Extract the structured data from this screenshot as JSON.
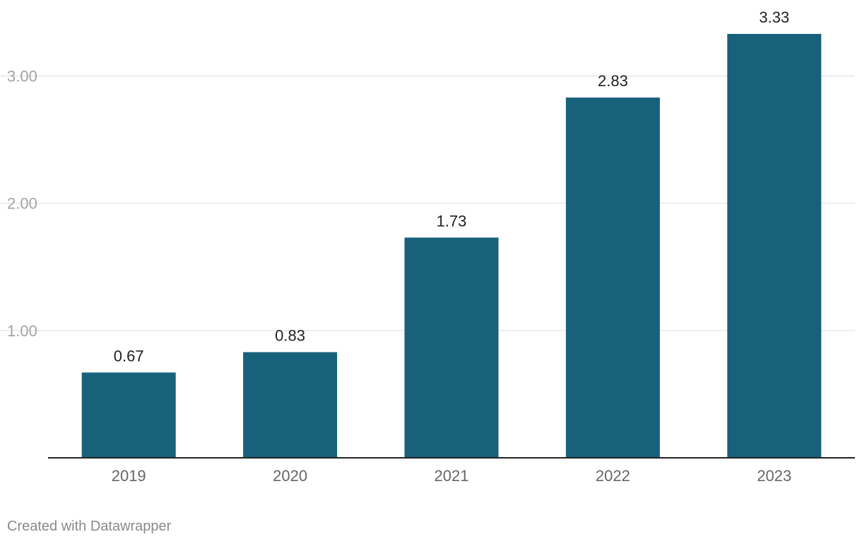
{
  "chart_data": {
    "type": "bar",
    "categories": [
      "2019",
      "2020",
      "2021",
      "2022",
      "2023"
    ],
    "values": [
      0.67,
      0.83,
      1.73,
      2.83,
      3.33
    ],
    "data_labels": [
      "0.67",
      "0.83",
      "1.73",
      "2.83",
      "3.33"
    ],
    "title": "",
    "xlabel": "",
    "ylabel": "",
    "ylim": [
      0,
      3.33
    ],
    "yticks": [
      1,
      2,
      3
    ],
    "ytick_labels": [
      "1.00",
      "2.00",
      "3.00"
    ],
    "grid": true,
    "legend": "none",
    "bar_color": "#17617b"
  },
  "footer": {
    "credit": "Created with Datawrapper"
  }
}
